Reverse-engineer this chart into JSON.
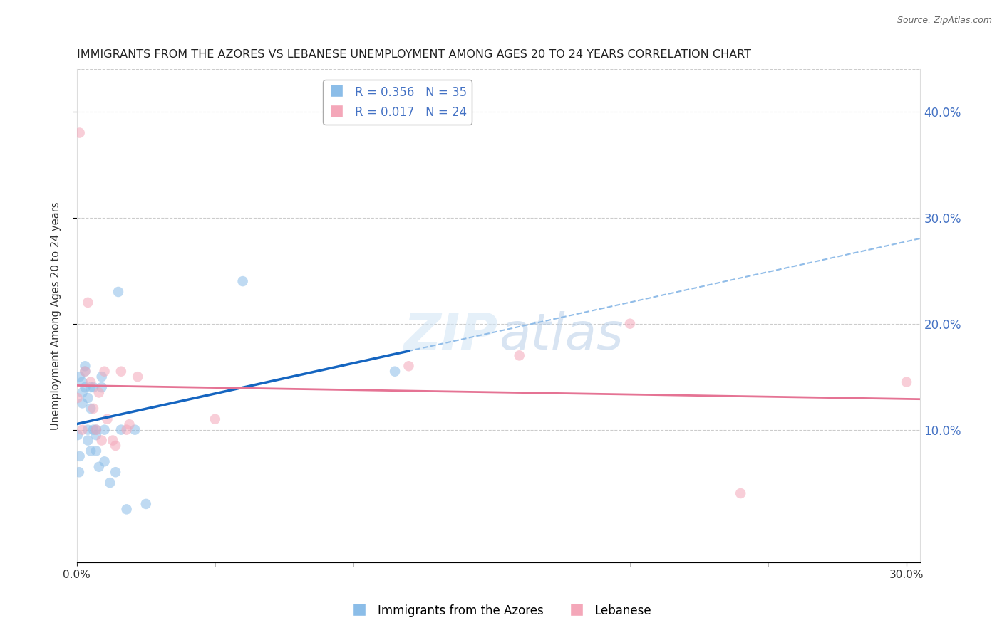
{
  "title": "IMMIGRANTS FROM THE AZORES VS LEBANESE UNEMPLOYMENT AMONG AGES 20 TO 24 YEARS CORRELATION CHART",
  "source": "Source: ZipAtlas.com",
  "ylabel": "Unemployment Among Ages 20 to 24 years",
  "xlim": [
    0.0,
    0.305
  ],
  "ylim": [
    -0.025,
    0.44
  ],
  "azores_x": [
    0.0003,
    0.0008,
    0.001,
    0.001,
    0.002,
    0.002,
    0.002,
    0.003,
    0.003,
    0.003,
    0.004,
    0.004,
    0.004,
    0.005,
    0.005,
    0.005,
    0.006,
    0.006,
    0.007,
    0.007,
    0.007,
    0.008,
    0.009,
    0.009,
    0.01,
    0.01,
    0.012,
    0.014,
    0.015,
    0.016,
    0.018,
    0.021,
    0.025,
    0.06,
    0.115
  ],
  "azores_y": [
    0.095,
    0.06,
    0.075,
    0.15,
    0.125,
    0.135,
    0.145,
    0.14,
    0.155,
    0.16,
    0.09,
    0.1,
    0.13,
    0.08,
    0.12,
    0.14,
    0.1,
    0.14,
    0.08,
    0.1,
    0.095,
    0.065,
    0.14,
    0.15,
    0.07,
    0.1,
    0.05,
    0.06,
    0.23,
    0.1,
    0.025,
    0.1,
    0.03,
    0.24,
    0.155
  ],
  "lebanese_x": [
    0.0002,
    0.001,
    0.002,
    0.003,
    0.004,
    0.005,
    0.006,
    0.007,
    0.008,
    0.009,
    0.01,
    0.011,
    0.013,
    0.014,
    0.016,
    0.018,
    0.019,
    0.022,
    0.05,
    0.12,
    0.16,
    0.2,
    0.24,
    0.3
  ],
  "lebanese_y": [
    0.13,
    0.38,
    0.1,
    0.155,
    0.22,
    0.145,
    0.12,
    0.1,
    0.135,
    0.09,
    0.155,
    0.11,
    0.09,
    0.085,
    0.155,
    0.1,
    0.105,
    0.15,
    0.11,
    0.16,
    0.17,
    0.2,
    0.04,
    0.145
  ],
  "azores_color": "#8bbde8",
  "lebanese_color": "#f4a7b9",
  "azores_line_color": "#1565c0",
  "lebanese_line_color": "#e57394",
  "dashed_line_color": "#90bce8",
  "R_azores": 0.356,
  "N_azores": 35,
  "R_lebanese": 0.017,
  "N_lebanese": 24,
  "legend_azores_label": "Immigrants from the Azores",
  "legend_lebanese_label": "Lebanese",
  "background_color": "#ffffff",
  "grid_color": "#cccccc",
  "title_fontsize": 11.5,
  "axis_label_fontsize": 10.5,
  "tick_fontsize": 10,
  "marker_size": 110,
  "marker_alpha": 0.55,
  "xticks": [
    0.0,
    0.3
  ],
  "yticks_right": [
    0.1,
    0.2,
    0.3,
    0.4
  ],
  "xtick_minor": [
    0.05,
    0.1,
    0.15,
    0.2,
    0.25
  ]
}
